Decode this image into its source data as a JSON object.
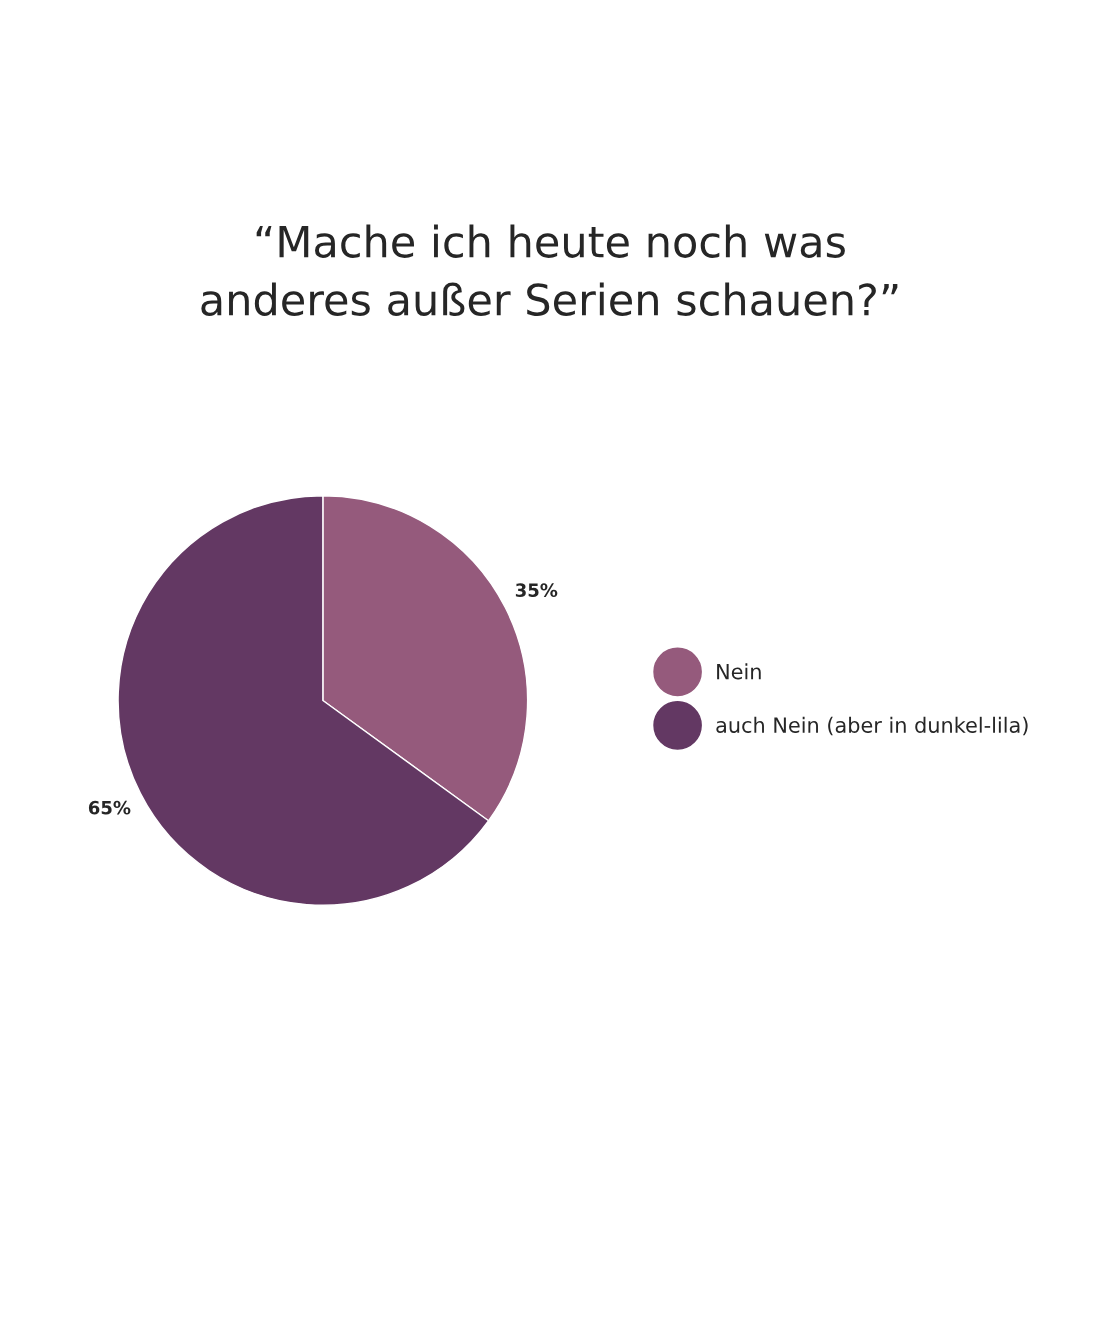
{
  "chart_data": {
    "type": "pie",
    "title": "“Mache ich heute noch was\nanderes außer Serien schauen?”",
    "categories": [
      "Nein",
      "auch Nein (aber in dunkel-lila)"
    ],
    "values": [
      35,
      65
    ],
    "colors": [
      "#955a7c",
      "#633863"
    ],
    "value_labels": [
      "35%",
      "65%"
    ],
    "legend": "right"
  }
}
